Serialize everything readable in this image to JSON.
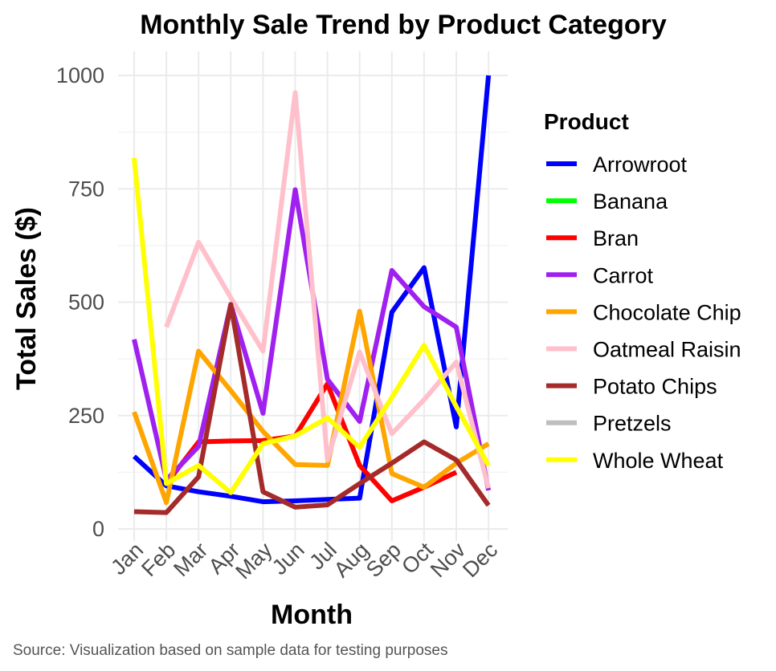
{
  "chart_data": {
    "type": "line",
    "title": "Monthly Sale Trend by Product Category",
    "xlabel": "Month",
    "ylabel": "Total Sales ($)",
    "caption": "Source: Visualization based on sample data for testing purposes",
    "legend_title": "Product",
    "legend_position": "right",
    "grid": true,
    "ylim": [
      0,
      1000
    ],
    "y_ticks": [
      0,
      250,
      500,
      750,
      1000
    ],
    "categories": [
      "Jan",
      "Feb",
      "Mar",
      "Apr",
      "May",
      "Jun",
      "Jul",
      "Aug",
      "Sep",
      "Oct",
      "Nov",
      "Dec"
    ],
    "series": [
      {
        "name": "Arrowroot",
        "color": "#0000FF",
        "values": [
          160,
          95,
          82,
          72,
          60,
          62,
          65,
          68,
          478,
          576,
          225,
          1000
        ]
      },
      {
        "name": "Banana",
        "color": "#00FF00",
        "values": [
          null,
          null,
          null,
          null,
          null,
          null,
          null,
          null,
          null,
          null,
          null,
          null
        ]
      },
      {
        "name": "Bran",
        "color": "#FF0000",
        "values": [
          null,
          100,
          192,
          194,
          195,
          205,
          320,
          140,
          62,
          92,
          125,
          null
        ]
      },
      {
        "name": "Carrot",
        "color": "#A020F0",
        "values": [
          418,
          108,
          182,
          495,
          255,
          748,
          330,
          237,
          570,
          490,
          445,
          85
        ]
      },
      {
        "name": "Chocolate Chip",
        "color": "#FFA500",
        "values": [
          258,
          58,
          392,
          305,
          215,
          142,
          140,
          480,
          122,
          92,
          145,
          188
        ]
      },
      {
        "name": "Oatmeal Raisin",
        "color": "#FFC0CB",
        "values": [
          null,
          445,
          632,
          510,
          392,
          962,
          152,
          390,
          210,
          285,
          368,
          90
        ]
      },
      {
        "name": "Potato Chips",
        "color": "#A52A2A",
        "values": [
          38,
          36,
          115,
          495,
          82,
          48,
          53,
          100,
          145,
          192,
          152,
          52
        ]
      },
      {
        "name": "Pretzels",
        "color": "#BEBEBE",
        "values": [
          null,
          null,
          null,
          null,
          null,
          null,
          null,
          null,
          null,
          null,
          null,
          null
        ]
      },
      {
        "name": "Whole Wheat",
        "color": "#FFFF00",
        "values": [
          818,
          100,
          140,
          80,
          188,
          205,
          245,
          180,
          290,
          405,
          270,
          140
        ]
      }
    ]
  }
}
